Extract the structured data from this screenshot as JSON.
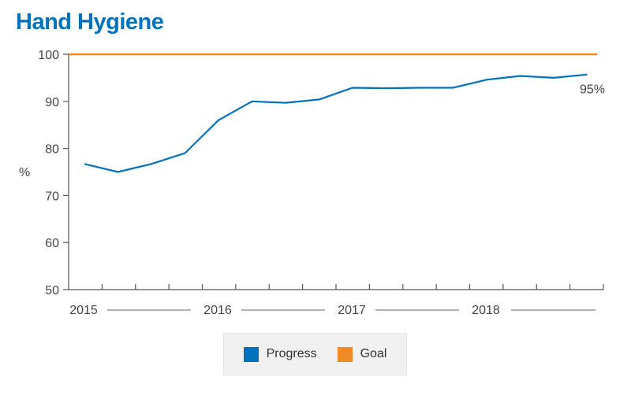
{
  "chart_data": {
    "type": "line",
    "title": "Hand Hygiene",
    "ylabel": "%",
    "xlabel": "",
    "ylim": [
      50,
      100
    ],
    "yticks": [
      50,
      60,
      70,
      80,
      90,
      100
    ],
    "year_labels": [
      "2015",
      "2016",
      "2017",
      "2018"
    ],
    "x": [
      "2015 Q1",
      "2015 Q2",
      "2015 Q3",
      "2015 Q4",
      "2016 Q1",
      "2016 Q2",
      "2016 Q3",
      "2016 Q4",
      "2017 Q1",
      "2017 Q2",
      "2017 Q3",
      "2017 Q4",
      "2018 Q1",
      "2018 Q2",
      "2018 Q3",
      "2018 Q4"
    ],
    "series": [
      {
        "name": "Progress",
        "color": "#0072bc",
        "values": [
          76.7,
          75.0,
          76.7,
          79.0,
          86.0,
          90.0,
          89.7,
          90.4,
          92.9,
          92.8,
          92.9,
          92.9,
          94.6,
          95.4,
          95.0,
          95.7
        ]
      },
      {
        "name": "Goal",
        "color": "#f08a24",
        "values": [
          100,
          100,
          100,
          100,
          100,
          100,
          100,
          100,
          100,
          100,
          100,
          100,
          100,
          100,
          100,
          100
        ]
      }
    ],
    "annotation": "95%",
    "title_color": "#0072bc",
    "legend_position": "bottom-center",
    "grid": false
  }
}
